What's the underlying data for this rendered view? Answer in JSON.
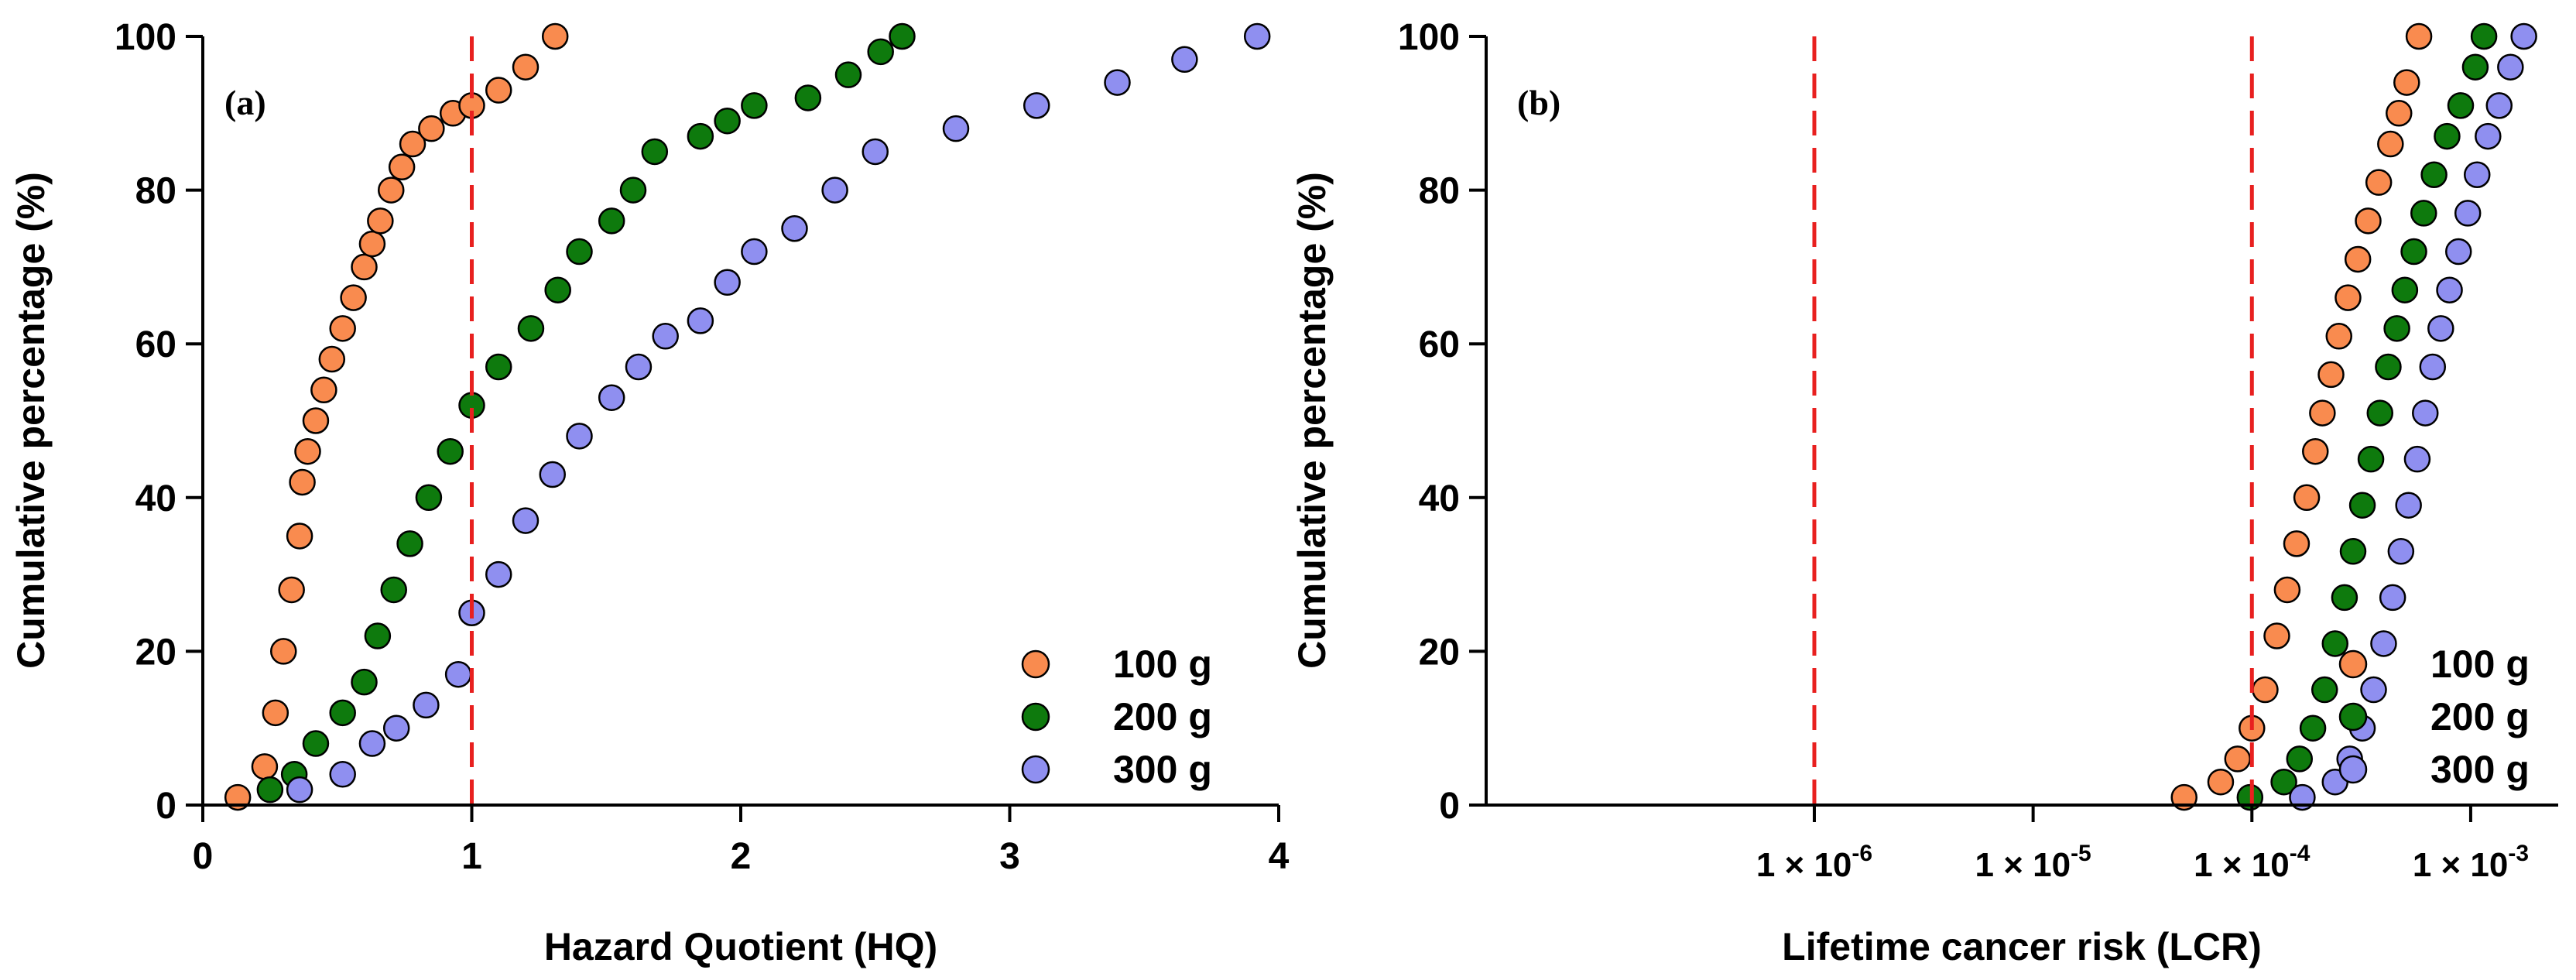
{
  "chart_data": [
    {
      "type": "scatter",
      "panel_label": "(a)",
      "xlabel": "Hazard Quotient (HQ)",
      "ylabel": "Cumulative percentage (%)",
      "xscale": "linear",
      "xlim": [
        0,
        4
      ],
      "ylim": [
        0,
        100
      ],
      "xticks": [
        0,
        1,
        2,
        3,
        4
      ],
      "xtick_labels": [
        "0",
        "1",
        "2",
        "3",
        "4"
      ],
      "yticks": [
        0,
        20,
        40,
        60,
        80,
        100
      ],
      "ytick_labels": [
        "0",
        "20",
        "40",
        "60",
        "80",
        "100"
      ],
      "reference_lines": [
        {
          "x": 1,
          "color": "#e8201f",
          "style": "dashed"
        }
      ],
      "legend_position": "bottom-right",
      "series": [
        {
          "name": "100 g",
          "color": "#f98b4f",
          "x": [
            0.13,
            0.23,
            0.27,
            0.3,
            0.33,
            0.36,
            0.37,
            0.39,
            0.42,
            0.45,
            0.48,
            0.52,
            0.56,
            0.6,
            0.63,
            0.66,
            0.7,
            0.74,
            0.78,
            0.85,
            0.93,
            1.0,
            1.1,
            1.2,
            1.31
          ],
          "y": [
            1,
            5,
            12,
            20,
            28,
            35,
            42,
            46,
            50,
            54,
            58,
            62,
            66,
            70,
            73,
            76,
            80,
            83,
            86,
            88,
            90,
            91,
            93,
            96,
            100
          ]
        },
        {
          "name": "200 g",
          "color": "#0e7a0d",
          "x": [
            0.25,
            0.34,
            0.42,
            0.52,
            0.6,
            0.65,
            0.71,
            0.77,
            0.84,
            0.92,
            1.0,
            1.1,
            1.22,
            1.32,
            1.4,
            1.52,
            1.6,
            1.68,
            1.85,
            1.95,
            2.05,
            2.25,
            2.4,
            2.52,
            2.6
          ],
          "y": [
            2,
            4,
            8,
            12,
            16,
            22,
            28,
            34,
            40,
            46,
            52,
            57,
            62,
            67,
            72,
            76,
            80,
            85,
            87,
            89,
            91,
            92,
            95,
            98,
            100
          ]
        },
        {
          "name": "300 g",
          "color": "#8f8ff0",
          "x": [
            0.36,
            0.52,
            0.63,
            0.72,
            0.83,
            0.95,
            1.0,
            1.1,
            1.2,
            1.3,
            1.4,
            1.52,
            1.62,
            1.72,
            1.85,
            1.95,
            2.05,
            2.2,
            2.35,
            2.5,
            2.8,
            3.1,
            3.4,
            3.65,
            3.92
          ],
          "y": [
            2,
            4,
            8,
            10,
            13,
            17,
            25,
            30,
            37,
            43,
            48,
            53,
            57,
            61,
            63,
            68,
            72,
            75,
            80,
            85,
            88,
            91,
            94,
            97,
            100
          ]
        }
      ]
    },
    {
      "type": "scatter",
      "panel_label": "(b)",
      "xlabel": "Lifetime cancer risk (LCR)",
      "ylabel": "Cumulative percentage (%)",
      "xscale": "log",
      "xlim_log10": [
        -7.5,
        -2.6
      ],
      "ylim": [
        0,
        100
      ],
      "xticks_log10": [
        -6,
        -5,
        -4,
        -3
      ],
      "xtick_labels": [
        "1 × 10-6",
        "1 × 10-5",
        "1 × 10-4",
        "1 × 10-3"
      ],
      "xtick_exponents": [
        "-6",
        "-5",
        "-4",
        "-3"
      ],
      "yticks": [
        0,
        20,
        40,
        60,
        80,
        100
      ],
      "ytick_labels": [
        "0",
        "20",
        "40",
        "60",
        "80",
        "100"
      ],
      "reference_lines": [
        {
          "x_log10": -6,
          "color": "#e8201f",
          "style": "dashed"
        },
        {
          "x_log10": -4,
          "color": "#e8201f",
          "style": "dashed"
        }
      ],
      "legend_position": "bottom-right",
      "series": [
        {
          "name": "100 g",
          "color": "#f98b4f",
          "x": [
            4.9e-05,
            7.2e-05,
            8.6e-05,
            0.0001,
            0.000115,
            0.00013,
            0.000145,
            0.00016,
            0.000178,
            0.000195,
            0.00021,
            0.00023,
            0.00025,
            0.000275,
            0.000305,
            0.00034,
            0.00038,
            0.00043,
            0.00047,
            0.00051,
            0.00058
          ],
          "y": [
            1,
            3,
            6,
            10,
            15,
            22,
            28,
            34,
            40,
            46,
            51,
            56,
            61,
            66,
            71,
            76,
            81,
            86,
            90,
            94,
            100
          ]
        },
        {
          "name": "200 g",
          "color": "#0e7a0d",
          "x": [
            9.8e-05,
            0.00014,
            0.000165,
            0.00019,
            0.000215,
            0.00024,
            0.000265,
            0.00029,
            0.00032,
            0.00035,
            0.000385,
            0.00042,
            0.00046,
            0.0005,
            0.00055,
            0.00061,
            0.00068,
            0.00078,
            0.0009,
            0.00105,
            0.00115
          ],
          "y": [
            1,
            3,
            6,
            10,
            15,
            21,
            27,
            33,
            39,
            45,
            51,
            57,
            62,
            67,
            72,
            77,
            82,
            87,
            91,
            96,
            100
          ]
        },
        {
          "name": "300 g",
          "color": "#8f8ff0",
          "x": [
            0.00017,
            0.00024,
            0.00028,
            0.00032,
            0.00036,
            0.0004,
            0.00044,
            0.00048,
            0.00052,
            0.00057,
            0.00062,
            0.00067,
            0.00073,
            0.0008,
            0.00088,
            0.00097,
            0.00107,
            0.0012,
            0.00135,
            0.00152,
            0.00175
          ],
          "y": [
            1,
            3,
            6,
            10,
            15,
            21,
            27,
            33,
            39,
            45,
            51,
            57,
            62,
            67,
            72,
            77,
            82,
            87,
            91,
            96,
            100
          ]
        }
      ]
    }
  ]
}
